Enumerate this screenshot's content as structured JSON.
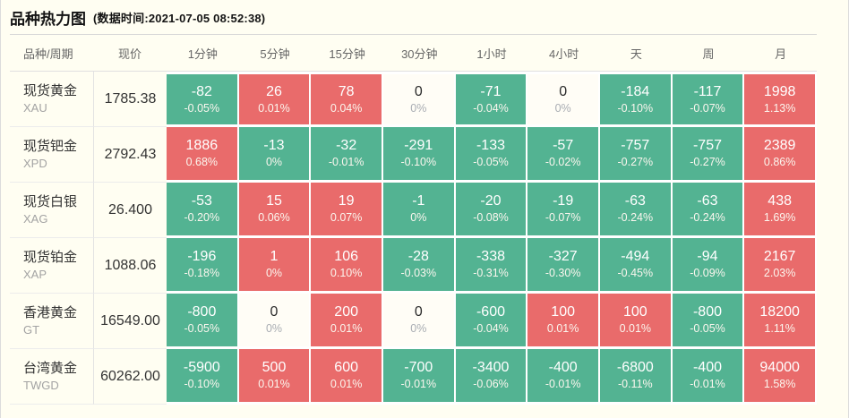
{
  "page": {
    "title": "品种热力图",
    "subtitle": "(数据时间:2021-07-05 08:52:38)"
  },
  "colors": {
    "up": "#e96b6b",
    "down": "#53b392",
    "flat_bg": "#fffdf6",
    "background": "#fffef2",
    "gap": "#ffffff"
  },
  "chart_data": {
    "type": "heatmap",
    "title": "品种热力图",
    "timestamp": "2021-07-05 08:52:38",
    "trend_semantics": {
      "up": "red",
      "down": "green",
      "flat": "neutral"
    },
    "columns": [
      "品种/周期",
      "现价",
      "1分钟",
      "5分钟",
      "15分钟",
      "30分钟",
      "1小时",
      "4小时",
      "天",
      "周",
      "月"
    ],
    "rows": [
      {
        "name": "现货黄金",
        "symbol": "XAU",
        "price": "1785.38",
        "cells": [
          {
            "value": "-82",
            "pct": "-0.05%",
            "trend": "down"
          },
          {
            "value": "26",
            "pct": "0.01%",
            "trend": "up"
          },
          {
            "value": "78",
            "pct": "0.04%",
            "trend": "up"
          },
          {
            "value": "0",
            "pct": "0%",
            "trend": "flat"
          },
          {
            "value": "-71",
            "pct": "-0.04%",
            "trend": "down"
          },
          {
            "value": "0",
            "pct": "0%",
            "trend": "flat"
          },
          {
            "value": "-184",
            "pct": "-0.10%",
            "trend": "down"
          },
          {
            "value": "-117",
            "pct": "-0.07%",
            "trend": "down"
          },
          {
            "value": "1998",
            "pct": "1.13%",
            "trend": "up"
          }
        ]
      },
      {
        "name": "现货钯金",
        "symbol": "XPD",
        "price": "2792.43",
        "cells": [
          {
            "value": "1886",
            "pct": "0.68%",
            "trend": "up"
          },
          {
            "value": "-13",
            "pct": "0%",
            "trend": "down"
          },
          {
            "value": "-32",
            "pct": "-0.01%",
            "trend": "down"
          },
          {
            "value": "-291",
            "pct": "-0.10%",
            "trend": "down"
          },
          {
            "value": "-133",
            "pct": "-0.05%",
            "trend": "down"
          },
          {
            "value": "-57",
            "pct": "-0.02%",
            "trend": "down"
          },
          {
            "value": "-757",
            "pct": "-0.27%",
            "trend": "down"
          },
          {
            "value": "-757",
            "pct": "-0.27%",
            "trend": "down"
          },
          {
            "value": "2389",
            "pct": "0.86%",
            "trend": "up"
          }
        ]
      },
      {
        "name": "现货白银",
        "symbol": "XAG",
        "price": "26.400",
        "cells": [
          {
            "value": "-53",
            "pct": "-0.20%",
            "trend": "down"
          },
          {
            "value": "15",
            "pct": "0.06%",
            "trend": "up"
          },
          {
            "value": "19",
            "pct": "0.07%",
            "trend": "up"
          },
          {
            "value": "-1",
            "pct": "0%",
            "trend": "down"
          },
          {
            "value": "-20",
            "pct": "-0.08%",
            "trend": "down"
          },
          {
            "value": "-19",
            "pct": "-0.07%",
            "trend": "down"
          },
          {
            "value": "-63",
            "pct": "-0.24%",
            "trend": "down"
          },
          {
            "value": "-63",
            "pct": "-0.24%",
            "trend": "down"
          },
          {
            "value": "438",
            "pct": "1.69%",
            "trend": "up"
          }
        ]
      },
      {
        "name": "现货铂金",
        "symbol": "XAP",
        "price": "1088.06",
        "cells": [
          {
            "value": "-196",
            "pct": "-0.18%",
            "trend": "down"
          },
          {
            "value": "1",
            "pct": "0%",
            "trend": "up"
          },
          {
            "value": "106",
            "pct": "0.10%",
            "trend": "up"
          },
          {
            "value": "-28",
            "pct": "-0.03%",
            "trend": "down"
          },
          {
            "value": "-338",
            "pct": "-0.31%",
            "trend": "down"
          },
          {
            "value": "-327",
            "pct": "-0.30%",
            "trend": "down"
          },
          {
            "value": "-494",
            "pct": "-0.45%",
            "trend": "down"
          },
          {
            "value": "-94",
            "pct": "-0.09%",
            "trend": "down"
          },
          {
            "value": "2167",
            "pct": "2.03%",
            "trend": "up"
          }
        ]
      },
      {
        "name": "香港黄金",
        "symbol": "GT",
        "price": "16549.00",
        "cells": [
          {
            "value": "-800",
            "pct": "-0.05%",
            "trend": "down"
          },
          {
            "value": "0",
            "pct": "0%",
            "trend": "flat"
          },
          {
            "value": "200",
            "pct": "0.01%",
            "trend": "up"
          },
          {
            "value": "0",
            "pct": "0%",
            "trend": "flat"
          },
          {
            "value": "-600",
            "pct": "-0.04%",
            "trend": "down"
          },
          {
            "value": "100",
            "pct": "0.01%",
            "trend": "up"
          },
          {
            "value": "100",
            "pct": "0.01%",
            "trend": "up"
          },
          {
            "value": "-800",
            "pct": "-0.05%",
            "trend": "down"
          },
          {
            "value": "18200",
            "pct": "1.11%",
            "trend": "up"
          }
        ]
      },
      {
        "name": "台湾黄金",
        "symbol": "TWGD",
        "price": "60262.00",
        "cells": [
          {
            "value": "-5900",
            "pct": "-0.10%",
            "trend": "down"
          },
          {
            "value": "500",
            "pct": "0.01%",
            "trend": "up"
          },
          {
            "value": "600",
            "pct": "0.01%",
            "trend": "up"
          },
          {
            "value": "-700",
            "pct": "-0.01%",
            "trend": "down"
          },
          {
            "value": "-3400",
            "pct": "-0.06%",
            "trend": "down"
          },
          {
            "value": "-400",
            "pct": "-0.01%",
            "trend": "down"
          },
          {
            "value": "-6800",
            "pct": "-0.11%",
            "trend": "down"
          },
          {
            "value": "-400",
            "pct": "-0.01%",
            "trend": "down"
          },
          {
            "value": "94000",
            "pct": "1.58%",
            "trend": "up"
          }
        ]
      }
    ]
  }
}
